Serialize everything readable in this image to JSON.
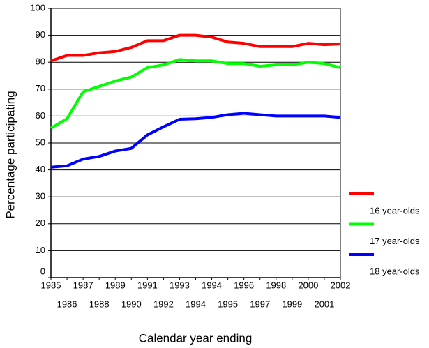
{
  "chart_data": {
    "type": "line",
    "xlabel": "Calendar  year ending",
    "ylabel": "Percentage participating",
    "categories": [
      "1985",
      "1986",
      "1987",
      "1988",
      "1989",
      "1990",
      "1991",
      "1992",
      "1993",
      "1994",
      "1994",
      "1995",
      "1996",
      "1997",
      "1998",
      "1999",
      "2000",
      "2001",
      "2002"
    ],
    "series": [
      {
        "name": "16 year-olds",
        "color": "#ff0000",
        "values": [
          80.5,
          82.5,
          82.5,
          83.5,
          84,
          85.5,
          88,
          88,
          90,
          90,
          89.3,
          87.5,
          87,
          85.8,
          85.8,
          85.8,
          87,
          86.5,
          86.8
        ]
      },
      {
        "name": "17 year-olds",
        "color": "#00ff00",
        "values": [
          55.5,
          59,
          69,
          71,
          73,
          74.5,
          78,
          79,
          81,
          80.5,
          80.5,
          79.5,
          79.5,
          78.5,
          79,
          79,
          80,
          79.5,
          78
        ]
      },
      {
        "name": "18 year-olds",
        "color": "#0000ff",
        "values": [
          41,
          41.5,
          44,
          45,
          47,
          48,
          53,
          56,
          58.8,
          59,
          59.5,
          60.5,
          61,
          60.5,
          60,
          60,
          60,
          60,
          59.5
        ]
      }
    ],
    "ylim": [
      0,
      100
    ],
    "yticks": [
      0,
      10,
      20,
      30,
      40,
      50,
      60,
      70,
      80,
      90,
      100
    ],
    "grid": true,
    "legend": "right"
  }
}
